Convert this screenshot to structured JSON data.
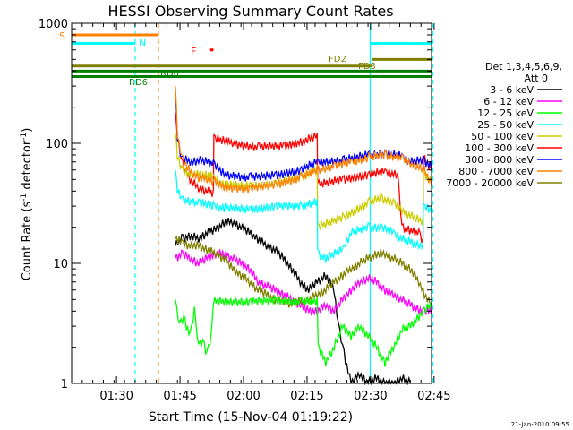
{
  "chart_data": {
    "type": "line",
    "title": "HESSI Observing Summary Count Rates",
    "xlabel": "Start Time (15-Nov-04 01:19:22)",
    "ylabel_parts": [
      "Count Rate (s",
      "-1",
      " detector",
      "-1",
      ")"
    ],
    "y_scale": "log",
    "ylim": [
      1,
      1000
    ],
    "xlim_minutes": [
      0,
      85
    ],
    "x_ticks": [
      {
        "m": 10.6,
        "label": "01:30"
      },
      {
        "m": 25.6,
        "label": "01:45"
      },
      {
        "m": 40.6,
        "label": "02:00"
      },
      {
        "m": 55.6,
        "label": "02:15"
      },
      {
        "m": 70.6,
        "label": "02:30"
      },
      {
        "m": 85.6,
        "label": "02:45"
      }
    ],
    "y_ticks": [
      {
        "v": 1,
        "label": "1"
      },
      {
        "v": 10,
        "label": "10"
      },
      {
        "v": 100,
        "label": "100"
      },
      {
        "v": 1000,
        "label": "1000"
      }
    ],
    "grid": false,
    "legend": {
      "placement": "right",
      "header": [
        "Det 1,3,4,5,6,9,",
        "Att 0"
      ],
      "entries": [
        {
          "label": "3 - 6 keV",
          "color": "#000000"
        },
        {
          "label": "6 - 12 keV",
          "color": "#ff00ff"
        },
        {
          "label": "12 - 25 keV",
          "color": "#00ff00"
        },
        {
          "label": "25 - 50 keV",
          "color": "#00ffff"
        },
        {
          "label": "50 - 100 keV",
          "color": "#cccc00"
        },
        {
          "label": "100 - 300 keV",
          "color": "#ff0000"
        },
        {
          "label": "300 - 800 keV",
          "color": "#0000ff"
        },
        {
          "label": "800 - 7000 keV",
          "color": "#ff8000"
        },
        {
          "label": "7000 - 20000 keV",
          "color": "#808000"
        }
      ]
    },
    "series": [
      {
        "name": "100 - 300 keV",
        "color": "#ff0000",
        "points": [
          [
            24.5,
            180
          ],
          [
            25,
            110
          ],
          [
            26,
            70
          ],
          [
            28,
            50
          ],
          [
            30,
            42
          ],
          [
            32,
            40
          ],
          [
            33.5,
            38
          ],
          [
            33.6,
            110
          ],
          [
            38,
            100
          ],
          [
            44,
            93
          ],
          [
            50,
            95
          ],
          [
            55,
            105
          ],
          [
            58,
            115
          ],
          [
            58.1,
            45
          ],
          [
            64,
            50
          ],
          [
            70,
            55
          ],
          [
            74,
            58
          ],
          [
            77,
            55
          ],
          [
            78,
            20
          ],
          [
            82,
            18
          ],
          [
            83,
            15
          ],
          [
            83.1,
            75
          ],
          [
            85,
            60
          ]
        ]
      },
      {
        "name": "300 - 800 keV",
        "color": "#0000ff",
        "points": [
          [
            24.5,
            250
          ],
          [
            25,
            110
          ],
          [
            26,
            75
          ],
          [
            28,
            70
          ],
          [
            30,
            72
          ],
          [
            32,
            70
          ],
          [
            33.5,
            68
          ],
          [
            36,
            55
          ],
          [
            42,
            52
          ],
          [
            48,
            54
          ],
          [
            54,
            60
          ],
          [
            58,
            70
          ],
          [
            64,
            72
          ],
          [
            70,
            80
          ],
          [
            74,
            82
          ],
          [
            78,
            78
          ],
          [
            80,
            70
          ],
          [
            83,
            72
          ],
          [
            85,
            65
          ]
        ]
      },
      {
        "name": "50 - 100 keV",
        "color": "#cccc00",
        "points": [
          [
            24.5,
            120
          ],
          [
            25,
            80
          ],
          [
            26,
            60
          ],
          [
            28,
            55
          ],
          [
            30,
            55
          ],
          [
            32,
            55
          ],
          [
            33.5,
            52
          ],
          [
            36,
            45
          ],
          [
            42,
            44
          ],
          [
            48,
            46
          ],
          [
            54,
            52
          ],
          [
            57,
            58
          ],
          [
            58,
            58
          ],
          [
            58.1,
            20
          ],
          [
            64,
            24
          ],
          [
            70,
            32
          ],
          [
            73,
            35
          ],
          [
            76,
            32
          ],
          [
            78,
            28
          ],
          [
            80,
            25
          ],
          [
            83,
            22
          ],
          [
            83.1,
            55
          ],
          [
            85,
            48
          ]
        ]
      },
      {
        "name": "800 - 7000 keV",
        "color": "#ff8000",
        "points": [
          [
            24.5,
            300
          ],
          [
            25,
            120
          ],
          [
            26,
            75
          ],
          [
            28,
            58
          ],
          [
            30,
            52
          ],
          [
            32,
            50
          ],
          [
            33.5,
            48
          ],
          [
            36,
            43
          ],
          [
            42,
            42
          ],
          [
            48,
            45
          ],
          [
            54,
            52
          ],
          [
            58,
            60
          ],
          [
            62,
            65
          ],
          [
            66,
            70
          ],
          [
            70,
            76
          ],
          [
            74,
            80
          ],
          [
            78,
            76
          ],
          [
            80,
            68
          ],
          [
            83,
            62
          ],
          [
            85,
            45
          ]
        ]
      },
      {
        "name": "25 - 50 keV",
        "color": "#00ffff",
        "points": [
          [
            24.5,
            60
          ],
          [
            25,
            40
          ],
          [
            26,
            34
          ],
          [
            30,
            32
          ],
          [
            33.5,
            30
          ],
          [
            36,
            29
          ],
          [
            42,
            28
          ],
          [
            48,
            30
          ],
          [
            54,
            30
          ],
          [
            58,
            33
          ],
          [
            58.1,
            12
          ],
          [
            60,
            11
          ],
          [
            64,
            13
          ],
          [
            66,
            18
          ],
          [
            70,
            20
          ],
          [
            73,
            20
          ],
          [
            76,
            18
          ],
          [
            78,
            16
          ],
          [
            80,
            15
          ],
          [
            83,
            14
          ],
          [
            83.1,
            30
          ],
          [
            85,
            28
          ]
        ]
      },
      {
        "name": "3 - 6 keV",
        "color": "#000000",
        "points": [
          [
            24.5,
            14
          ],
          [
            26,
            16
          ],
          [
            28,
            17
          ],
          [
            30,
            16
          ],
          [
            32,
            18
          ],
          [
            34,
            19
          ],
          [
            36,
            22
          ],
          [
            38,
            22
          ],
          [
            40,
            20
          ],
          [
            42,
            18
          ],
          [
            44,
            16
          ],
          [
            46,
            14
          ],
          [
            48,
            13
          ],
          [
            50,
            11
          ],
          [
            52,
            9
          ],
          [
            54,
            7
          ],
          [
            56,
            6
          ],
          [
            58,
            7
          ],
          [
            60,
            8
          ],
          [
            62,
            6
          ],
          [
            63,
            3
          ],
          [
            64,
            2
          ],
          [
            66,
            1
          ],
          [
            68,
            1.2
          ],
          [
            70,
            1
          ],
          [
            72,
            1.1
          ],
          [
            74,
            1
          ],
          [
            76,
            1
          ],
          [
            78,
            1.1
          ],
          [
            80,
            1
          ]
        ]
      },
      {
        "name": "6 - 12 keV",
        "color": "#ff00ff",
        "points": [
          [
            24.5,
            11
          ],
          [
            26,
            12
          ],
          [
            28,
            11
          ],
          [
            30,
            10
          ],
          [
            32,
            11
          ],
          [
            34,
            12
          ],
          [
            36,
            12
          ],
          [
            38,
            11
          ],
          [
            40,
            10
          ],
          [
            42,
            9
          ],
          [
            44,
            7
          ],
          [
            46,
            6.5
          ],
          [
            48,
            6
          ],
          [
            50,
            5.5
          ],
          [
            52,
            5
          ],
          [
            54,
            4.5
          ],
          [
            56,
            4
          ],
          [
            58,
            4
          ],
          [
            60,
            4.5
          ],
          [
            62,
            4
          ],
          [
            64,
            5
          ],
          [
            66,
            6
          ],
          [
            68,
            7
          ],
          [
            70,
            7.5
          ],
          [
            72,
            7
          ],
          [
            74,
            6
          ],
          [
            76,
            5.5
          ],
          [
            78,
            5
          ],
          [
            80,
            4.5
          ],
          [
            83,
            4
          ],
          [
            85,
            4
          ]
        ]
      },
      {
        "name": "7000 - 20000 keV",
        "color": "#808000",
        "points": [
          [
            24.5,
            16
          ],
          [
            26,
            15
          ],
          [
            28,
            14
          ],
          [
            30,
            14
          ],
          [
            32,
            13
          ],
          [
            34,
            12
          ],
          [
            36,
            11
          ],
          [
            38,
            9
          ],
          [
            40,
            8
          ],
          [
            42,
            7
          ],
          [
            44,
            6
          ],
          [
            46,
            5.5
          ],
          [
            48,
            5
          ],
          [
            50,
            4.8
          ],
          [
            52,
            4.6
          ],
          [
            54,
            4.8
          ],
          [
            56,
            5
          ],
          [
            58,
            5.5
          ],
          [
            60,
            6
          ],
          [
            62,
            7
          ],
          [
            64,
            8
          ],
          [
            66,
            9
          ],
          [
            68,
            10
          ],
          [
            70,
            11
          ],
          [
            72,
            12
          ],
          [
            74,
            12
          ],
          [
            76,
            11
          ],
          [
            78,
            10
          ],
          [
            80,
            9
          ],
          [
            82,
            7
          ],
          [
            84,
            5
          ],
          [
            85,
            4.5
          ]
        ]
      },
      {
        "name": "12 - 25 keV",
        "color": "#00ff00",
        "points": [
          [
            24.5,
            5
          ],
          [
            25.5,
            3
          ],
          [
            26.5,
            3.5
          ],
          [
            28,
            2.5
          ],
          [
            29,
            4
          ],
          [
            30,
            2
          ],
          [
            31,
            2.2
          ],
          [
            32,
            1.8
          ],
          [
            33,
            2.5
          ],
          [
            33.5,
            4.8
          ],
          [
            36,
            4.8
          ],
          [
            42,
            4.8
          ],
          [
            48,
            4.9
          ],
          [
            54,
            4.8
          ],
          [
            58,
            4.8
          ],
          [
            58.2,
            2
          ],
          [
            60,
            1.5
          ],
          [
            62,
            2
          ],
          [
            64,
            3
          ],
          [
            66,
            2.5
          ],
          [
            68,
            3
          ],
          [
            70,
            2.5
          ],
          [
            72,
            2
          ],
          [
            74,
            1.5
          ],
          [
            76,
            2
          ],
          [
            78,
            2.8
          ],
          [
            80,
            3
          ],
          [
            83,
            4
          ],
          [
            85,
            4.5
          ]
        ]
      }
    ],
    "state_markers": [
      {
        "label": "S",
        "color": "#ff8000",
        "start": 0,
        "end": 20.5,
        "value": 800
      },
      {
        "label": "N",
        "color": "#00ffff",
        "start": 0,
        "end": 15,
        "value": 680
      },
      {
        "label": "N",
        "color": "#00ffff",
        "start": 70.5,
        "end": 85,
        "value": 680
      },
      {
        "label": "FD2",
        "color": "#808000",
        "start": 0,
        "end": 71,
        "value": 440
      },
      {
        "label": "FD3",
        "color": "#808000",
        "start": 71,
        "end": 85,
        "value": 500
      },
      {
        "label": "RD0",
        "color": "#008000",
        "start": 0,
        "end": 85,
        "value": 400
      },
      {
        "label": "RD6",
        "color": "#008000",
        "start": 0,
        "end": 85,
        "value": 360
      },
      {
        "label": "F",
        "color": "#ff0000",
        "start": 32.5,
        "end": 33.5,
        "value": 600
      }
    ],
    "markers": {
      "label_s": "S",
      "label_n": "N",
      "label_f": "F",
      "label_fd2": "FD2",
      "label_fd3": "FD3",
      "label_rd0": "RD0",
      "label_rd6": "RD6"
    },
    "vlines": [
      {
        "m": 15,
        "color": "#00ffff",
        "style": "dash"
      },
      {
        "m": 20.5,
        "color": "#ff8000",
        "style": "dash"
      },
      {
        "m": 70.5,
        "color": "#00ffff",
        "style": "solid"
      },
      {
        "m": 85.3,
        "color": "#00ffff",
        "style": "dash"
      }
    ]
  },
  "footer": {
    "timestamp": "21-Jan-2010 09:55"
  }
}
